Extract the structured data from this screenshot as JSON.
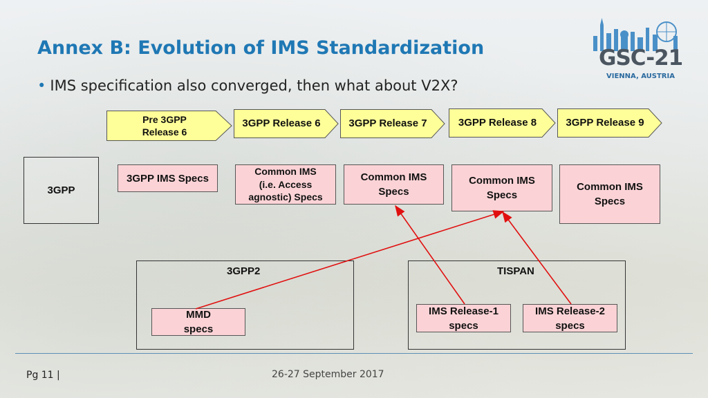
{
  "slide": {
    "title": "Annex B: Evolution of IMS Standardization",
    "bullet": "IMS specification also converged, then what about V2X?",
    "footer_page": "Pg  11 |",
    "footer_date": "26-27 September 2017"
  },
  "logo": {
    "name": "GSC-21",
    "location": "VIENNA, AUSTRIA"
  },
  "releases": [
    {
      "label": "Pre 3GPP\nRelease 6"
    },
    {
      "label": "3GPP Release 6"
    },
    {
      "label": "3GPP Release 7"
    },
    {
      "label": "3GPP Release 8"
    },
    {
      "label": "3GPP Release 9"
    }
  ],
  "rows": {
    "gpp_label": "3GPP",
    "gpp2_label": "3GPP2",
    "tispan_label": "TISPAN"
  },
  "specs": {
    "ims_specs": "3GPP IMS Specs",
    "common_access": "Common IMS\n(i.e. Access\nagnostic) Specs",
    "common_r7": "Common IMS\nSpecs",
    "common_r8": "Common IMS\nSpecs",
    "common_r9": "Common IMS\nSpecs",
    "mmd": "MMD\nspecs",
    "ims_r1": "IMS Release-1\nspecs",
    "ims_r2": "IMS Release-2\nspecs"
  },
  "colors": {
    "title": "#1f78b4",
    "release_fill": "#ffff99",
    "spec_fill": "#fbd3d6",
    "connector": "#e01010"
  }
}
